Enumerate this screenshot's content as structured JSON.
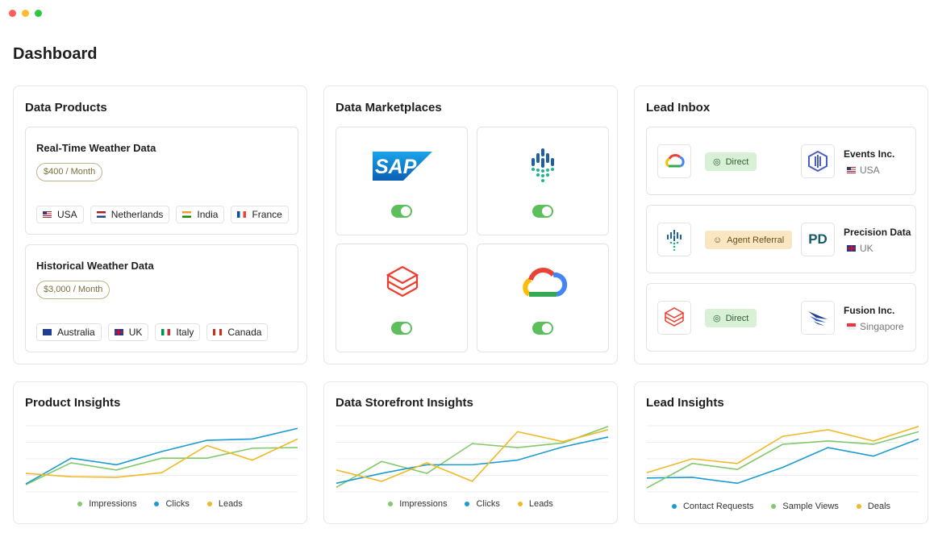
{
  "page": {
    "title": "Dashboard"
  },
  "data_products": {
    "title": "Data Products",
    "items": [
      {
        "name": "Real-Time Weather Data",
        "price": "$400 / Month",
        "countries": [
          "USA",
          "Netherlands",
          "India",
          "France"
        ]
      },
      {
        "name": "Historical Weather Data",
        "price": "$3,000 / Month",
        "countries": [
          "Australia",
          "UK",
          "Italy",
          "Canada"
        ]
      }
    ]
  },
  "data_marketplaces": {
    "title": "Data Marketplaces",
    "items": [
      {
        "logo": "SAP",
        "enabled": true
      },
      {
        "enabled": true
      },
      {
        "enabled": true
      },
      {
        "enabled": true
      }
    ]
  },
  "lead_inbox": {
    "title": "Lead Inbox",
    "leads": [
      {
        "channel": "Direct",
        "company": "Events Inc.",
        "country": "USA"
      },
      {
        "channel": "Agent Referral",
        "logo": "PD",
        "company": "Precision Data",
        "country": "UK"
      },
      {
        "channel": "Direct",
        "company": "Fusion Inc.",
        "country": "Singapore"
      }
    ]
  },
  "chart_data": [
    {
      "type": "line",
      "title": "Product Insights",
      "categories": [
        null,
        null,
        null,
        null,
        null,
        null,
        null
      ],
      "series": [
        {
          "name": "Impressions",
          "color": "#82c96a",
          "values": [
            11,
            44,
            33,
            51,
            51,
            66,
            67
          ]
        },
        {
          "name": "Clicks",
          "color": "#1b9bd1",
          "values": [
            12,
            51,
            41,
            61,
            78,
            80,
            96
          ]
        },
        {
          "name": "Leads",
          "color": "#f0b92a",
          "values": [
            28,
            23,
            22,
            29,
            70,
            48,
            80
          ]
        }
      ],
      "ylim": [
        0,
        100
      ],
      "yticks": [
        0,
        25,
        50,
        75,
        100
      ],
      "grid": true
    },
    {
      "type": "line",
      "title": "Data Storefront Insights",
      "categories": [
        null,
        null,
        null,
        null,
        null,
        null,
        null
      ],
      "series": [
        {
          "name": "Impressions",
          "color": "#82c96a",
          "values": [
            7,
            46,
            28,
            73,
            67,
            74,
            99
          ]
        },
        {
          "name": "Clicks",
          "color": "#1b9bd1",
          "values": [
            13,
            28,
            41,
            41,
            48,
            68,
            83
          ]
        },
        {
          "name": "Leads",
          "color": "#f0b92a",
          "values": [
            33,
            16,
            44,
            16,
            91,
            76,
            94
          ]
        }
      ],
      "ylim": [
        0,
        100
      ],
      "yticks": [
        0,
        25,
        50,
        75,
        100
      ],
      "grid": true
    },
    {
      "type": "line",
      "title": "Lead Insights",
      "categories": [
        null,
        null,
        null,
        null,
        null,
        null,
        null
      ],
      "series": [
        {
          "name": "Contact Requests",
          "color": "#1b9bd1",
          "values": [
            21,
            22,
            13,
            37,
            67,
            54,
            80
          ]
        },
        {
          "name": "Sample Views",
          "color": "#82c96a",
          "values": [
            6,
            43,
            34,
            72,
            77,
            72,
            91
          ]
        },
        {
          "name": "Deals",
          "color": "#f0b92a",
          "values": [
            29,
            50,
            43,
            84,
            94,
            77,
            99
          ]
        }
      ],
      "ylim": [
        0,
        100
      ],
      "yticks": [
        0,
        25,
        50,
        75,
        100
      ],
      "grid": true
    }
  ]
}
